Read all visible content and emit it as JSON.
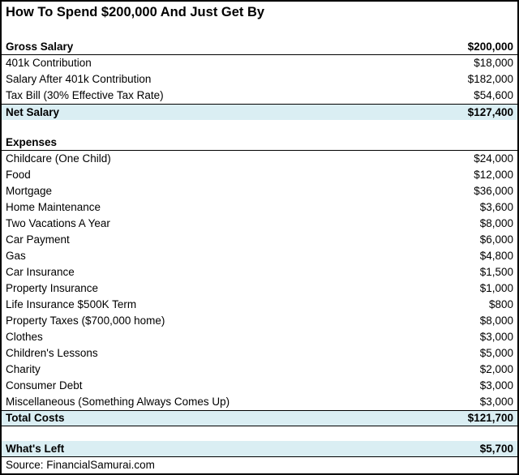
{
  "page": {
    "title": "How To Spend $200,000 And Just Get By",
    "source": "Source: FinancialSamurai.com"
  },
  "colors": {
    "highlight": "#DAEEF3",
    "border": "#000000",
    "text": "#000000",
    "background": "#FFFFFF"
  },
  "chart_data": {
    "type": "table",
    "title": "How To Spend $200,000 And Just Get By",
    "source": "Source: FinancialSamurai.com",
    "columns": [
      "Item",
      "Amount"
    ],
    "rows": [
      {
        "kind": "title",
        "label": "How To Spend $200,000 And Just Get By",
        "value": ""
      },
      {
        "kind": "spacer"
      },
      {
        "kind": "header",
        "label": "Gross Salary",
        "value": "$200,000",
        "amount": 200000,
        "borders": "bottom"
      },
      {
        "kind": "item",
        "label": "401k Contribution",
        "value": "$18,000",
        "amount": 18000
      },
      {
        "kind": "item",
        "label": "Salary After 401k Contribution",
        "value": "$182,000",
        "amount": 182000
      },
      {
        "kind": "item",
        "label": "Tax Bill (30% Effective Tax Rate)",
        "value": "$54,600",
        "amount": 54600
      },
      {
        "kind": "total",
        "label": "Net Salary",
        "value": "$127,400",
        "amount": 127400,
        "borders": "top"
      },
      {
        "kind": "spacer"
      },
      {
        "kind": "header",
        "label": "Expenses",
        "value": "",
        "borders": "bottom"
      },
      {
        "kind": "item",
        "label": "Childcare (One Child)",
        "value": "$24,000",
        "amount": 24000
      },
      {
        "kind": "item",
        "label": "Food",
        "value": "$12,000",
        "amount": 12000
      },
      {
        "kind": "item",
        "label": "Mortgage",
        "value": "$36,000",
        "amount": 36000
      },
      {
        "kind": "item",
        "label": "Home Maintenance",
        "value": "$3,600",
        "amount": 3600
      },
      {
        "kind": "item",
        "label": "Two Vacations A Year",
        "value": "$8,000",
        "amount": 8000
      },
      {
        "kind": "item",
        "label": "Car Payment",
        "value": "$6,000",
        "amount": 6000
      },
      {
        "kind": "item",
        "label": "Gas",
        "value": "$4,800",
        "amount": 4800
      },
      {
        "kind": "item",
        "label": "Car Insurance",
        "value": "$1,500",
        "amount": 1500
      },
      {
        "kind": "item",
        "label": "Property Insurance",
        "value": "$1,000",
        "amount": 1000
      },
      {
        "kind": "item",
        "label": "Life Insurance $500K Term",
        "value": "$800",
        "amount": 800
      },
      {
        "kind": "item",
        "label": "Property Taxes ($700,000 home)",
        "value": "$8,000",
        "amount": 8000
      },
      {
        "kind": "item",
        "label": "Clothes",
        "value": "$3,000",
        "amount": 3000
      },
      {
        "kind": "item",
        "label": "Children's Lessons",
        "value": "$5,000",
        "amount": 5000
      },
      {
        "kind": "item",
        "label": "Charity",
        "value": "$2,000",
        "amount": 2000
      },
      {
        "kind": "item",
        "label": "Consumer Debt",
        "value": "$3,000",
        "amount": 3000
      },
      {
        "kind": "item",
        "label": "Miscellaneous (Something Always Comes Up)",
        "value": "$3,000",
        "amount": 3000
      },
      {
        "kind": "total",
        "label": "Total Costs",
        "value": "$121,700",
        "amount": 121700,
        "borders": "top bottom"
      },
      {
        "kind": "spacer"
      },
      {
        "kind": "total",
        "label": "What's Left",
        "value": "$5,700",
        "amount": 5700,
        "borders": "bottom"
      },
      {
        "kind": "source",
        "label": "Source: FinancialSamurai.com",
        "value": ""
      }
    ]
  }
}
